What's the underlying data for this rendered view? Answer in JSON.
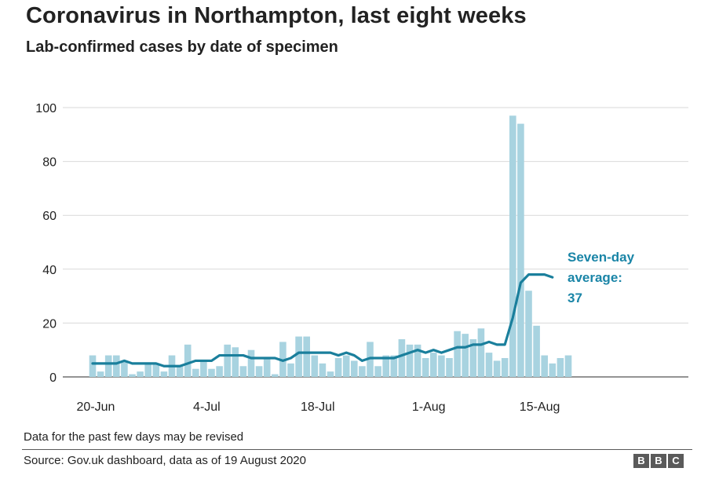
{
  "title": "Coronavirus in Northampton, last eight weeks",
  "subtitle": "Lab-confirmed cases by date of specimen",
  "note": "Data for the past few days may be revised",
  "source": "Source: Gov.uk dashboard, data as of 19 August 2020",
  "logo_letters": [
    "B",
    "B",
    "C"
  ],
  "colors": {
    "bar": "#a8d3e0",
    "average_line": "#1a7f9c",
    "average_label": "#1a85a7",
    "grid": "#d9d9d9",
    "text": "#222222"
  },
  "chart_data": {
    "type": "bar",
    "title": "Coronavirus in Northampton, last eight weeks",
    "subtitle": "Lab-confirmed cases by date of specimen",
    "xlabel": "",
    "ylabel": "",
    "ylim": [
      0,
      100
    ],
    "yticks": [
      0,
      20,
      40,
      60,
      80,
      100
    ],
    "xticks": [
      "20-Jun",
      "4-Jul",
      "18-Jul",
      "1-Aug",
      "15-Aug"
    ],
    "xtick_index": [
      0,
      14,
      28,
      42,
      56
    ],
    "categories_start": "20-Jun",
    "series": [
      {
        "name": "Daily lab-confirmed cases",
        "type": "bar",
        "values": [
          8,
          2,
          8,
          8,
          6,
          1,
          2,
          5,
          5,
          2,
          8,
          4,
          12,
          3,
          6,
          3,
          4,
          12,
          11,
          4,
          10,
          4,
          7,
          1,
          13,
          5,
          15,
          15,
          8,
          5,
          2,
          7,
          8,
          6,
          4,
          13,
          4,
          8,
          8,
          14,
          12,
          12,
          7,
          9,
          8,
          7,
          17,
          16,
          14,
          18,
          9,
          6,
          7,
          97,
          94,
          32,
          19,
          8,
          5,
          7,
          8
        ]
      },
      {
        "name": "Seven-day average",
        "type": "line",
        "values": [
          5,
          5,
          5,
          5,
          6,
          5,
          5,
          5,
          5,
          4,
          4,
          4,
          5,
          6,
          6,
          6,
          8,
          8,
          8,
          8,
          7,
          7,
          7,
          7,
          6,
          7,
          9,
          9,
          9,
          9,
          9,
          8,
          9,
          8,
          6,
          7,
          7,
          7,
          7,
          8,
          9,
          10,
          9,
          10,
          9,
          10,
          11,
          11,
          12,
          12,
          13,
          12,
          12,
          22,
          35,
          38,
          38,
          38,
          37
        ]
      }
    ],
    "annotations": [
      {
        "series": "Seven-day average",
        "lines": [
          "Seven-day",
          "average:",
          "37"
        ]
      }
    ]
  }
}
